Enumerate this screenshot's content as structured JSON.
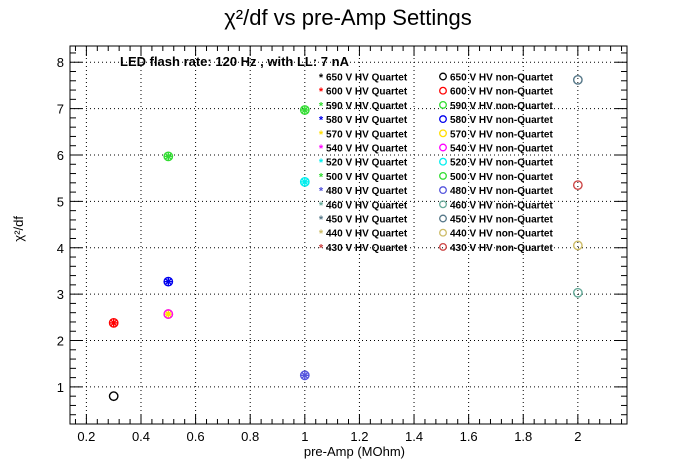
{
  "chart_data": {
    "type": "scatter",
    "title": "χ²/df vs pre-Amp Settings",
    "xlabel": "pre-Amp (MOhm)",
    "ylabel": "χ²/df",
    "annotation": "LED flash rate: 120 Hz , with LL: 7 nA",
    "xlim": [
      0.14,
      2.18
    ],
    "ylim": [
      0.2,
      8.35
    ],
    "grid": true,
    "legend_placement": "top-right",
    "x_ticks": [
      "0.2",
      "0.4",
      "0.6",
      "0.8",
      "1",
      "1.2",
      "1.4",
      "1.6",
      "1.8",
      "2"
    ],
    "y_ticks": [
      "1",
      "2",
      "3",
      "4",
      "5",
      "6",
      "7",
      "8"
    ],
    "series": [
      {
        "name": "650 V HV Quartet",
        "color": "#000000",
        "marker": "star",
        "points": []
      },
      {
        "name": "600 V HV Quartet",
        "color": "#ff0000",
        "marker": "star",
        "points": [
          [
            0.3,
            2.38
          ]
        ]
      },
      {
        "name": "590 V HV Quartet",
        "color": "#33dd33",
        "marker": "star",
        "points": [
          [
            1.0,
            6.97
          ]
        ]
      },
      {
        "name": "580 V HV Quartet",
        "color": "#0000ee",
        "marker": "star",
        "points": [
          [
            0.5,
            3.27
          ]
        ]
      },
      {
        "name": "570 V HV Quartet",
        "color": "#ffdd00",
        "marker": "star",
        "points": [
          [
            0.5,
            2.57
          ]
        ]
      },
      {
        "name": "540 V HV Quartet",
        "color": "#ff00ff",
        "marker": "star",
        "points": []
      },
      {
        "name": "520 V HV Quartet",
        "color": "#00eeee",
        "marker": "star",
        "points": [
          [
            1.0,
            5.42
          ]
        ]
      },
      {
        "name": "500 V HV Quartet",
        "color": "#33dd33",
        "marker": "star",
        "points": [
          [
            0.5,
            5.97
          ]
        ]
      },
      {
        "name": "480 V HV Quartet",
        "color": "#5555dd",
        "marker": "star",
        "points": [
          [
            1.0,
            1.25
          ]
        ]
      },
      {
        "name": "460 V HV Quartet",
        "color": "#66aa99",
        "marker": "star",
        "points": []
      },
      {
        "name": "450 V HV Quartet",
        "color": "#557788",
        "marker": "star",
        "points": []
      },
      {
        "name": "440 V HV Quartet",
        "color": "#ccbb66",
        "marker": "star",
        "points": []
      },
      {
        "name": "430 V HV Quartet",
        "color": "#cc4444",
        "marker": "star",
        "points": []
      },
      {
        "name": "650 V HV non-Quartet",
        "color": "#000000",
        "marker": "circle",
        "points": [
          [
            0.3,
            0.8
          ]
        ]
      },
      {
        "name": "600 V HV non-Quartet",
        "color": "#ff0000",
        "marker": "circle",
        "points": [
          [
            0.3,
            2.38
          ]
        ]
      },
      {
        "name": "590 V HV non-Quartet",
        "color": "#33dd33",
        "marker": "circle",
        "points": [
          [
            1.0,
            6.97
          ]
        ]
      },
      {
        "name": "580 V HV non-Quartet",
        "color": "#0000ee",
        "marker": "circle",
        "points": [
          [
            0.5,
            3.27
          ]
        ]
      },
      {
        "name": "570 V HV non-Quartet",
        "color": "#ffdd00",
        "marker": "circle",
        "points": [
          [
            0.5,
            2.57
          ]
        ]
      },
      {
        "name": "540 V HV non-Quartet",
        "color": "#ff00ff",
        "marker": "circle",
        "points": [
          [
            0.5,
            2.57
          ]
        ]
      },
      {
        "name": "520 V HV non-Quartet",
        "color": "#00eeee",
        "marker": "circle",
        "points": [
          [
            1.0,
            5.42
          ]
        ]
      },
      {
        "name": "500 V HV non-Quartet",
        "color": "#33dd33",
        "marker": "circle",
        "points": [
          [
            0.5,
            5.97
          ]
        ]
      },
      {
        "name": "480 V HV non-Quartet",
        "color": "#5555dd",
        "marker": "circle",
        "points": [
          [
            1.0,
            1.25
          ]
        ]
      },
      {
        "name": "460 V HV non-Quartet",
        "color": "#66aa99",
        "marker": "circle",
        "points": [
          [
            2.0,
            3.03
          ]
        ]
      },
      {
        "name": "450 V HV non-Quartet",
        "color": "#557788",
        "marker": "circle",
        "points": [
          [
            2.0,
            7.62
          ]
        ]
      },
      {
        "name": "440 V HV non-Quartet",
        "color": "#ccbb66",
        "marker": "circle",
        "points": [
          [
            2.0,
            4.05
          ]
        ]
      },
      {
        "name": "430 V HV non-Quartet",
        "color": "#cc4444",
        "marker": "circle",
        "points": [
          [
            2.0,
            5.35
          ]
        ]
      }
    ]
  }
}
